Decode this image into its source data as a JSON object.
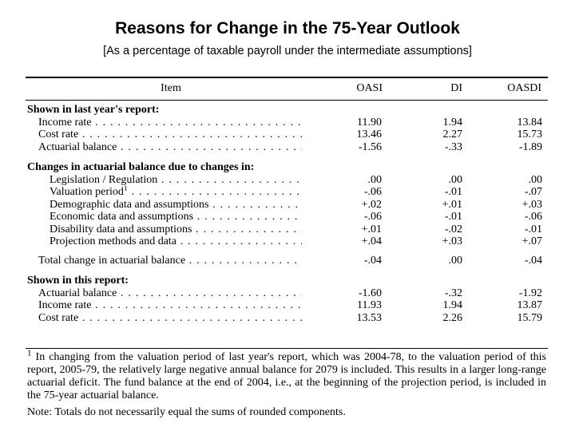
{
  "title": "Reasons for Change in the 75-Year Outlook",
  "subtitle": "[As a percentage of taxable payroll under the intermediate assumptions]",
  "table": {
    "headers": {
      "item": "Item",
      "oasi": "OASI",
      "di": "DI",
      "oasdi": "OASDI"
    },
    "sections": [
      {
        "heading": "Shown in last year's report:",
        "rows": [
          {
            "label": "Income rate",
            "oasi": "11.90",
            "di": "1.94",
            "oasdi": "13.84"
          },
          {
            "label": "Cost rate",
            "oasi": "13.46",
            "di": "2.27",
            "oasdi": "15.73"
          },
          {
            "label": "Actuarial balance",
            "oasi": "-1.56",
            "di": "-.33",
            "oasdi": "-1.89"
          }
        ]
      },
      {
        "heading": "Changes in actuarial balance due to changes in:",
        "rows": [
          {
            "label": "Legislation / Regulation",
            "oasi": ".00",
            "di": ".00",
            "oasdi": ".00"
          },
          {
            "label": "Valuation period",
            "footnote_mark": "1",
            "oasi": "-.06",
            "di": "-.01",
            "oasdi": "-.07"
          },
          {
            "label": "Demographic data and assumptions",
            "oasi": "+.02",
            "di": "+.01",
            "oasdi": "+.03"
          },
          {
            "label": "Economic data and assumptions",
            "oasi": "-.06",
            "di": "-.01",
            "oasdi": "-.06"
          },
          {
            "label": "Disability data and assumptions",
            "oasi": "+.01",
            "di": "-.02",
            "oasdi": "-.01"
          },
          {
            "label": "Projection methods and data",
            "oasi": "+.04",
            "di": "+.03",
            "oasdi": "+.07"
          }
        ],
        "total": {
          "label": "Total change in actuarial balance",
          "oasi": "-.04",
          "di": ".00",
          "oasdi": "-.04"
        }
      },
      {
        "heading": "Shown in this report:",
        "rows": [
          {
            "label": "Actuarial balance",
            "oasi": "-1.60",
            "di": "-.32",
            "oasdi": "-1.92"
          },
          {
            "label": "Income rate",
            "oasi": "11.93",
            "di": "1.94",
            "oasdi": "13.87"
          },
          {
            "label": "Cost rate",
            "oasi": "13.53",
            "di": "2.26",
            "oasdi": "15.79"
          }
        ]
      }
    ]
  },
  "footnote": {
    "mark": "1",
    "text": "In changing from the valuation period of last year's report, which was 2004-78, to the valuation period of this report, 2005-79, the relatively large negative annual balance for 2079 is included. This results in a larger long-range actuarial deficit. The fund balance at the end of 2004, i.e., at the beginning of the projection period, is included in the 75-year actuarial balance."
  },
  "note": "Note: Totals do not necessarily equal the sums of rounded components."
}
